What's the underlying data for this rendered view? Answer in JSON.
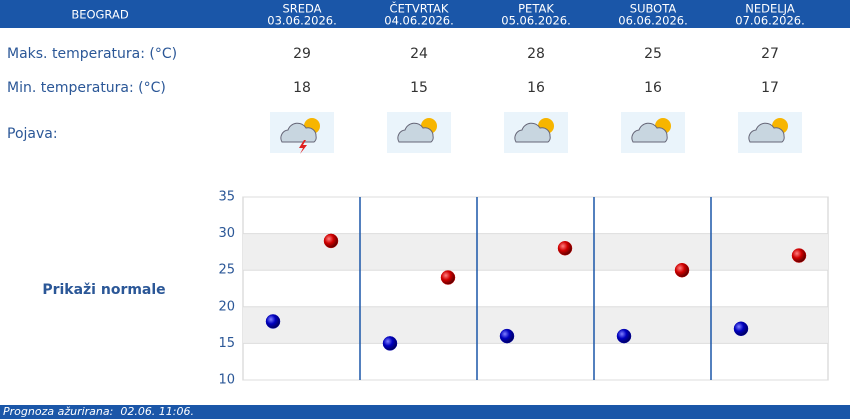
{
  "header": {
    "city": "BEOGRAD",
    "days": [
      {
        "name": "SREDA",
        "date": "03.06.2026."
      },
      {
        "name": "ČETVRTAK",
        "date": "04.06.2026."
      },
      {
        "name": "PETAK",
        "date": "05.06.2026."
      },
      {
        "name": "SUBOTA",
        "date": "06.06.2026."
      },
      {
        "name": "NEDELJA",
        "date": "07.06.2026."
      }
    ]
  },
  "rows": {
    "max_label": "Maks. temperatura: (°C)",
    "min_label": "Min. temperatura: (°C)",
    "weather_label": "Pojava:"
  },
  "forecast": {
    "max": [
      29,
      24,
      28,
      25,
      27
    ],
    "min": [
      18,
      15,
      16,
      16,
      17
    ]
  },
  "chart": {
    "ylim": [
      10,
      35
    ],
    "yticks": [
      10,
      15,
      20,
      25,
      30,
      35
    ],
    "max_color": "#cc0000",
    "min_color": "#0000b0",
    "button": "Prikaži normale"
  },
  "footer": "Prognoza ažurirana:  02.06. 11:06."
}
